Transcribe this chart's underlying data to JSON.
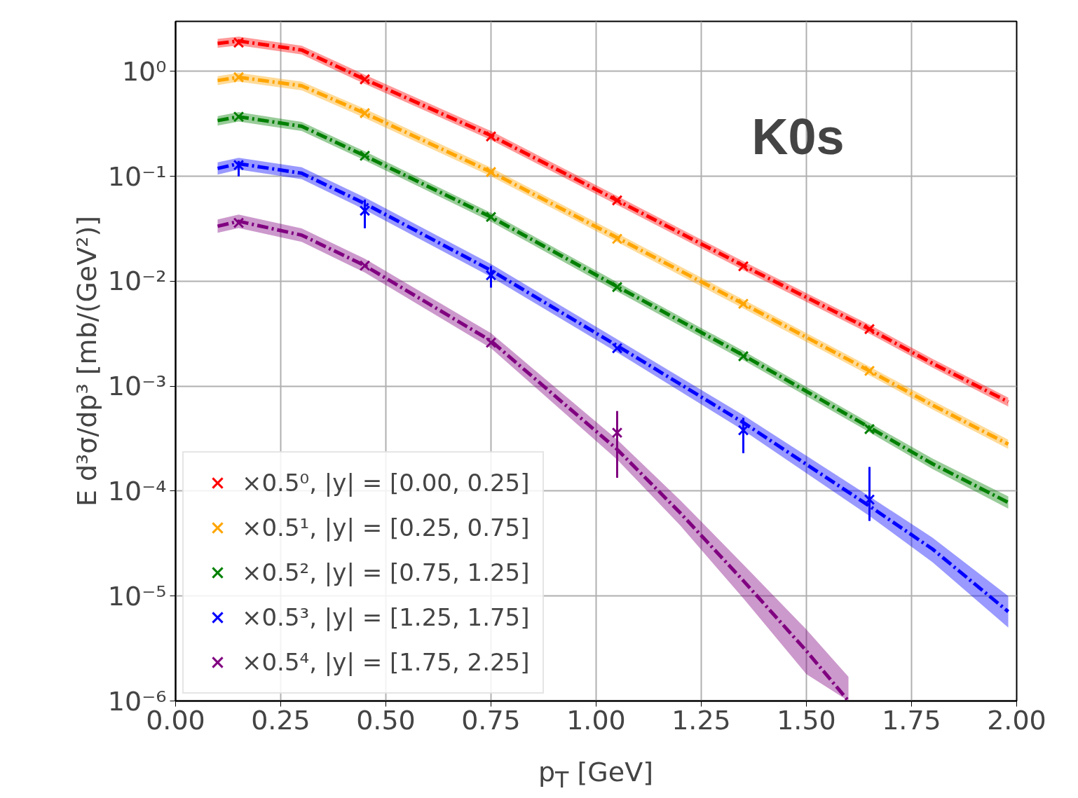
{
  "chart_data": {
    "type": "scatter",
    "xlabel": "p$_{T}$ [GeV]",
    "ylabel": "E d³σ/dp³ [mb/(GeV²)]",
    "annotations": [
      "K0s"
    ],
    "log": "y",
    "grid": true,
    "legend": "bottom left",
    "marker": "cross",
    "xlim": [
      0,
      2
    ],
    "ylim": [
      1e-06,
      3.0
    ],
    "xticks": [
      {
        "value": 0,
        "label": "0.00"
      },
      {
        "value": 0.25,
        "label": "0.25"
      },
      {
        "value": 0.5,
        "label": "0.50"
      },
      {
        "value": 0.75,
        "label": "0.75"
      },
      {
        "value": 1.0,
        "label": "1.00"
      },
      {
        "value": 1.25,
        "label": "1.25"
      },
      {
        "value": 1.5,
        "label": "1.50"
      },
      {
        "value": 1.75,
        "label": "1.75"
      },
      {
        "value": 2.0,
        "label": "2.00"
      }
    ],
    "yticks": [
      {
        "value": 1e-06,
        "label": "10⁻⁶"
      },
      {
        "value": 1e-05,
        "label": "10⁻⁵"
      },
      {
        "value": 0.0001,
        "label": "10⁻⁴"
      },
      {
        "value": 0.001,
        "label": "10⁻³"
      },
      {
        "value": 0.01,
        "label": "10⁻²"
      },
      {
        "value": 0.1,
        "label": "10⁻¹"
      },
      {
        "value": 1,
        "label": "10⁰"
      }
    ],
    "x": [
      0.15,
      0.45,
      0.75,
      1.05,
      1.35,
      1.65
    ],
    "series": [
      {
        "type": "line",
        "marker": "none",
        "line_style": "dashed",
        "color": "#ff0000",
        "x": [
          0.1,
          0.15,
          0.3,
          0.45,
          0.75,
          1.05,
          1.35,
          1.65,
          1.8,
          1.98
        ],
        "values": [
          1.85,
          1.95,
          1.6,
          0.84,
          0.245,
          0.059,
          0.0141,
          0.0035,
          0.00165,
          0.00071
        ],
        "lower": [
          1.68,
          1.77,
          1.45,
          0.76,
          0.222,
          0.0535,
          0.0128,
          0.00317,
          0.0015,
          0.00064
        ],
        "upper": [
          2.04,
          2.15,
          1.76,
          0.93,
          0.27,
          0.065,
          0.0155,
          0.00386,
          0.00182,
          0.00078
        ]
      },
      {
        "type": "line",
        "marker": "none",
        "line_style": "dashed",
        "color": "#ffa500",
        "x": [
          0.1,
          0.15,
          0.3,
          0.45,
          0.75,
          1.05,
          1.35,
          1.65,
          1.8,
          1.98
        ],
        "values": [
          0.82,
          0.88,
          0.73,
          0.4,
          0.11,
          0.026,
          0.0061,
          0.0014,
          0.00066,
          0.00028
        ],
        "lower": [
          0.74,
          0.8,
          0.66,
          0.36,
          0.1,
          0.0236,
          0.0055,
          0.00127,
          0.0006,
          0.000252
        ],
        "upper": [
          0.9,
          0.97,
          0.8,
          0.44,
          0.121,
          0.0286,
          0.0067,
          0.00154,
          0.00073,
          0.00031
        ]
      },
      {
        "type": "line",
        "marker": "none",
        "line_style": "dashed",
        "color": "#008000",
        "x": [
          0.1,
          0.15,
          0.3,
          0.45,
          0.75,
          1.05,
          1.35,
          1.65,
          1.8,
          1.98
        ],
        "values": [
          0.34,
          0.37,
          0.3,
          0.157,
          0.041,
          0.0089,
          0.00197,
          0.000405,
          0.000182,
          7.8e-05
        ],
        "lower": [
          0.305,
          0.333,
          0.27,
          0.142,
          0.037,
          0.008,
          0.00177,
          0.000364,
          0.000162,
          6.8e-05
        ],
        "upper": [
          0.375,
          0.41,
          0.33,
          0.173,
          0.045,
          0.0098,
          0.00217,
          0.000447,
          0.000204,
          8.9e-05
        ]
      },
      {
        "type": "line",
        "marker": "none",
        "line_style": "dashed",
        "color": "#0000ff",
        "x": [
          0.1,
          0.15,
          0.3,
          0.45,
          0.75,
          1.05,
          1.35,
          1.65,
          1.8,
          1.98
        ],
        "values": [
          0.119,
          0.132,
          0.107,
          0.055,
          0.0127,
          0.00243,
          0.00045,
          7.2e-05,
          2.8e-05,
          7.1e-06
        ],
        "lower": [
          0.104,
          0.116,
          0.094,
          0.048,
          0.011,
          0.0021,
          0.00038,
          5.8e-05,
          2.1e-05,
          5e-06
        ],
        "upper": [
          0.136,
          0.15,
          0.122,
          0.063,
          0.0146,
          0.0028,
          0.00053,
          8.9e-05,
          3.6e-05,
          1e-05
        ]
      },
      {
        "type": "line",
        "marker": "none",
        "line_style": "dashed",
        "color": "#800080",
        "x": [
          0.1,
          0.15,
          0.3,
          0.45,
          0.75,
          1.05,
          1.2,
          1.35,
          1.5,
          1.6
        ],
        "values": [
          0.0335,
          0.0373,
          0.0275,
          0.0141,
          0.0027,
          0.00025,
          6.2e-05,
          1.4e-05,
          3e-06,
          1e-06
        ],
        "lower": [
          0.029,
          0.0322,
          0.0237,
          0.0121,
          0.0023,
          0.0002,
          4.7e-05,
          9.5e-06,
          1.8e-06,
          1e-06
        ],
        "upper": [
          0.0388,
          0.0432,
          0.0319,
          0.0164,
          0.0032,
          0.00031,
          8.2e-05,
          2e-05,
          4.8e-06,
          1.7e-06
        ]
      },
      {
        "name": "×0.5⁰, |y| = [0.00, 0.25]",
        "color": "#ff0000",
        "values": [
          1.88,
          0.84,
          0.24,
          0.059,
          0.0139,
          0.0035
        ]
      },
      {
        "name": "×0.5¹, |y| = [0.25, 0.75]",
        "color": "#ffa500",
        "values": [
          0.88,
          0.4,
          0.11,
          0.0254,
          0.0061,
          0.0014
        ]
      },
      {
        "name": "×0.5², |y| = [0.75, 1.25]",
        "color": "#008000",
        "values": [
          0.37,
          0.157,
          0.041,
          0.0088,
          0.00193,
          0.00039
        ]
      },
      {
        "name": "×0.5³, |y| = [1.25, 1.75]",
        "color": "#0000ff",
        "values": [
          0.128,
          0.047,
          0.0114,
          0.0023,
          0.00038,
          8.3e-05
        ],
        "errors": [
          [
            0.1,
            0.14
          ],
          [
            0.032,
            0.06
          ],
          [
            0.0087,
            0.014
          ],
          null,
          [
            0.00023,
            0.0005
          ],
          [
            5.2e-05,
            0.00017
          ]
        ]
      },
      {
        "name": "×0.5⁴, |y| = [1.75, 2.25]",
        "color": "#800080",
        "values": [
          0.036,
          0.0141,
          0.0026,
          0.00036,
          null,
          null
        ],
        "errors": [
          null,
          null,
          null,
          [
            0.000134,
            0.00058
          ],
          null,
          null
        ]
      }
    ]
  }
}
